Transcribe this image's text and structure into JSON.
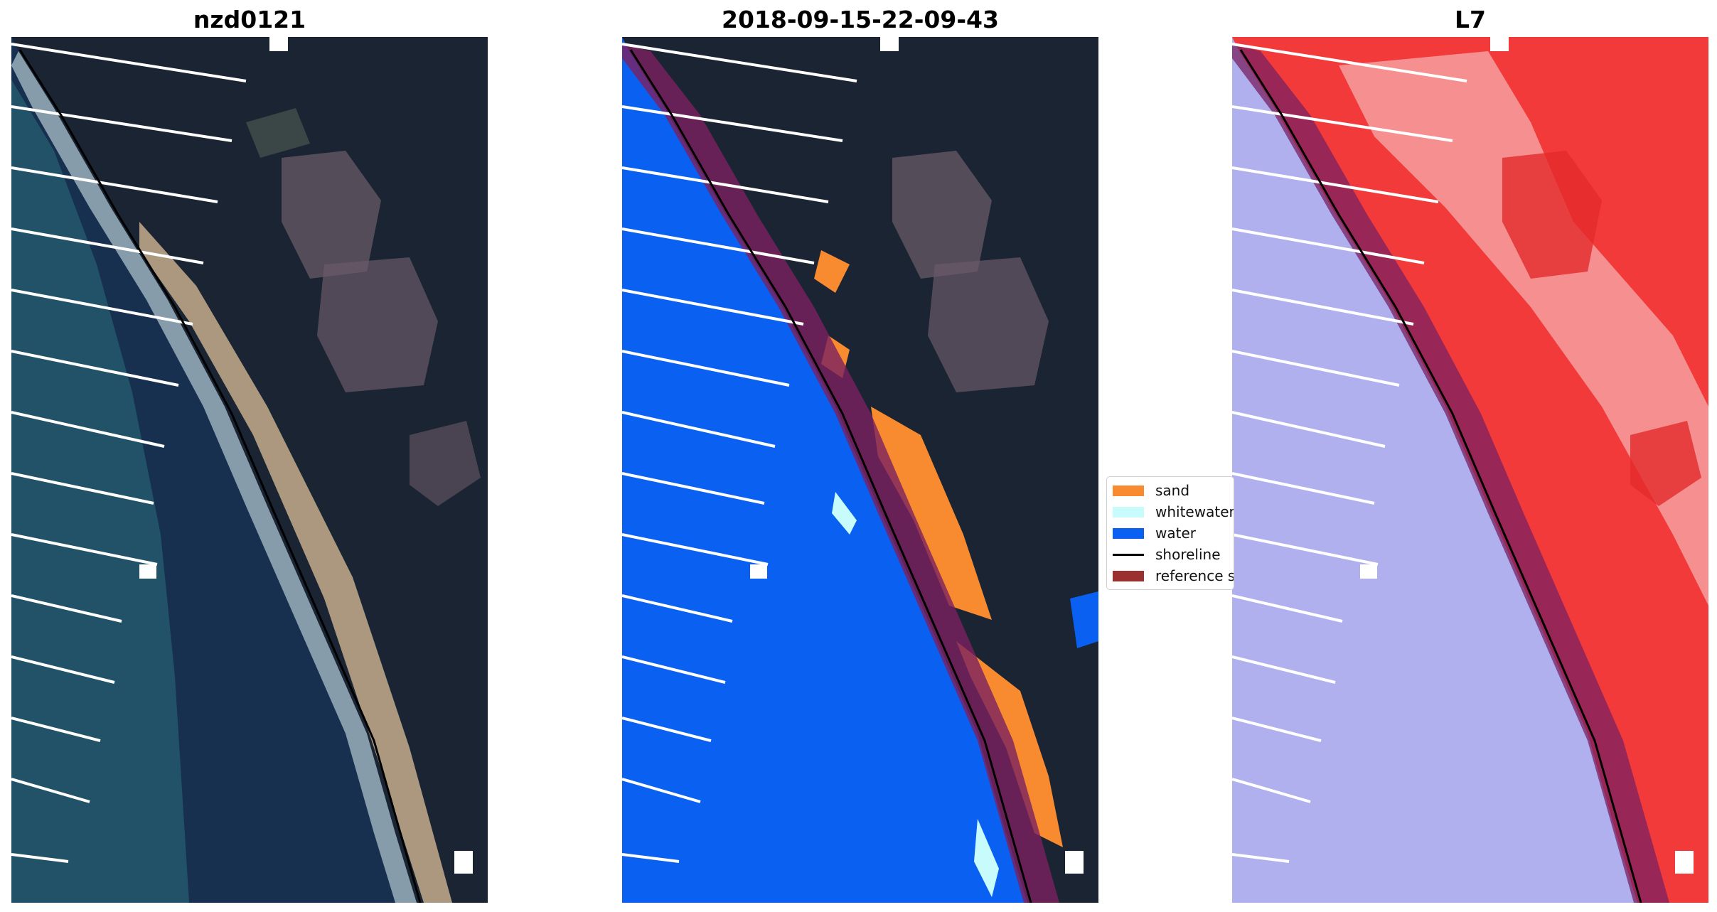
{
  "panels": [
    {
      "title": "nzd0121"
    },
    {
      "title": "2018-09-15-22-09-43"
    },
    {
      "title": "L7"
    }
  ],
  "legend": {
    "items": [
      {
        "label": "sand",
        "color": "#f88a2f",
        "kind": "patch"
      },
      {
        "label": "whitewater",
        "color": "#c8fcfc",
        "kind": "patch"
      },
      {
        "label": "water",
        "color": "#0a60f0",
        "kind": "patch"
      },
      {
        "label": "shoreline",
        "color": "#000000",
        "kind": "line"
      },
      {
        "label": "reference s",
        "color": "#9a3030",
        "kind": "patch"
      }
    ]
  },
  "colors": {
    "sea_deep": "#17304f",
    "sea_shallow": "#2b6f7c",
    "land_dark": "#1a2433",
    "forest_patch": "#6a5a68",
    "dunes": "#c7ad8c",
    "classified_water": "#0a60f0",
    "reference_buffer": "#7a2060",
    "l7_land": "#f23a3a",
    "l7_water": "#b0b0ee"
  }
}
